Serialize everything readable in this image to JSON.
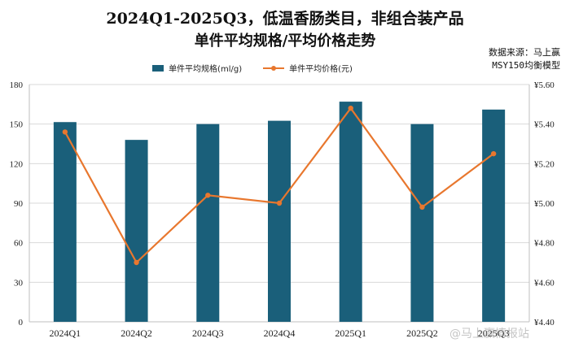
{
  "chart_data": {
    "type": "bar+line",
    "title": "2024Q1-2025Q3，低温香肠类目，非组合装产品",
    "subtitle": "单件平均规格/平均价格走势",
    "categories": [
      "2024Q1",
      "2024Q2",
      "2024Q3",
      "2024Q4",
      "2025Q1",
      "2025Q2",
      "2025Q3"
    ],
    "series": [
      {
        "name": "单件平均规格(ml/g)",
        "type": "bar",
        "axis": "left",
        "values": [
          151.5,
          138,
          150,
          152.5,
          167,
          150,
          161
        ]
      },
      {
        "name": "单件平均价格(元)",
        "type": "line",
        "axis": "right",
        "values": [
          5.36,
          4.7,
          5.04,
          5.0,
          5.48,
          4.98,
          5.25
        ]
      }
    ],
    "y_left": {
      "min": 0,
      "max": 180,
      "ticks": [
        "0",
        "30",
        "60",
        "90",
        "120",
        "150",
        "180"
      ]
    },
    "y_right": {
      "min": 4.4,
      "max": 5.6,
      "ticks": [
        "¥4.40",
        "¥4.60",
        "¥4.80",
        "¥5.00",
        "¥5.20",
        "¥5.40",
        "¥5.60"
      ]
    },
    "legend_position": "top",
    "grid": true,
    "colors": {
      "bar": "#1a5f7a",
      "line": "#e8772e",
      "grid": "#d9d9d9"
    },
    "source_line1": "数据来源：马上赢",
    "source_line2": "MSY150均衡模型",
    "watermark": "@马上赢情报站"
  }
}
